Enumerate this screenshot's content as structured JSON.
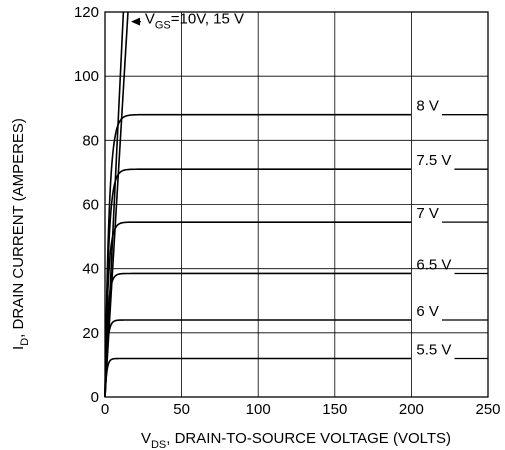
{
  "chart_data": {
    "type": "line",
    "xlabel": {
      "main": "V",
      "sub": "DS",
      "rest": ", DRAIN-TO-SOURCE VOLTAGE (VOLTS)"
    },
    "ylabel": {
      "main": "I",
      "sub": "D",
      "rest": ", DRAIN CURRENT (AMPERES)"
    },
    "xlim": [
      0,
      250
    ],
    "ylim": [
      0,
      120
    ],
    "x_ticks": [
      0,
      50,
      100,
      150,
      200,
      250
    ],
    "y_ticks": [
      0,
      20,
      40,
      60,
      80,
      100,
      120
    ],
    "grid": true,
    "series": [
      {
        "name": "5.5 V",
        "label": "5.5 V",
        "type": "saturation",
        "isat": 12,
        "knee": 4,
        "xmax": 200
      },
      {
        "name": "6 V",
        "label": "6 V",
        "type": "saturation",
        "isat": 24,
        "knee": 5,
        "xmax": 200
      },
      {
        "name": "6.5 V",
        "label": "6.5 V",
        "type": "saturation",
        "isat": 38.5,
        "knee": 6,
        "xmax": 200
      },
      {
        "name": "7 V",
        "label": "7 V",
        "type": "saturation",
        "isat": 54.5,
        "knee": 7,
        "xmax": 200
      },
      {
        "name": "7.5 V",
        "label": "7.5 V",
        "type": "saturation",
        "isat": 71,
        "knee": 8,
        "xmax": 200
      },
      {
        "name": "8 V",
        "label": "8 V",
        "type": "saturation",
        "isat": 88,
        "knee": 9,
        "xmax": 200
      },
      {
        "name": "VGS = 10 V",
        "type": "linear",
        "points": [
          [
            0,
            0
          ],
          [
            12,
            120
          ]
        ]
      },
      {
        "name": "VGS = 15 V",
        "type": "linear",
        "points": [
          [
            0,
            0
          ],
          [
            15,
            120
          ]
        ]
      }
    ],
    "annotation": {
      "prefix": "V",
      "sub": "GS",
      "rest": "=10V, 15 V"
    }
  }
}
